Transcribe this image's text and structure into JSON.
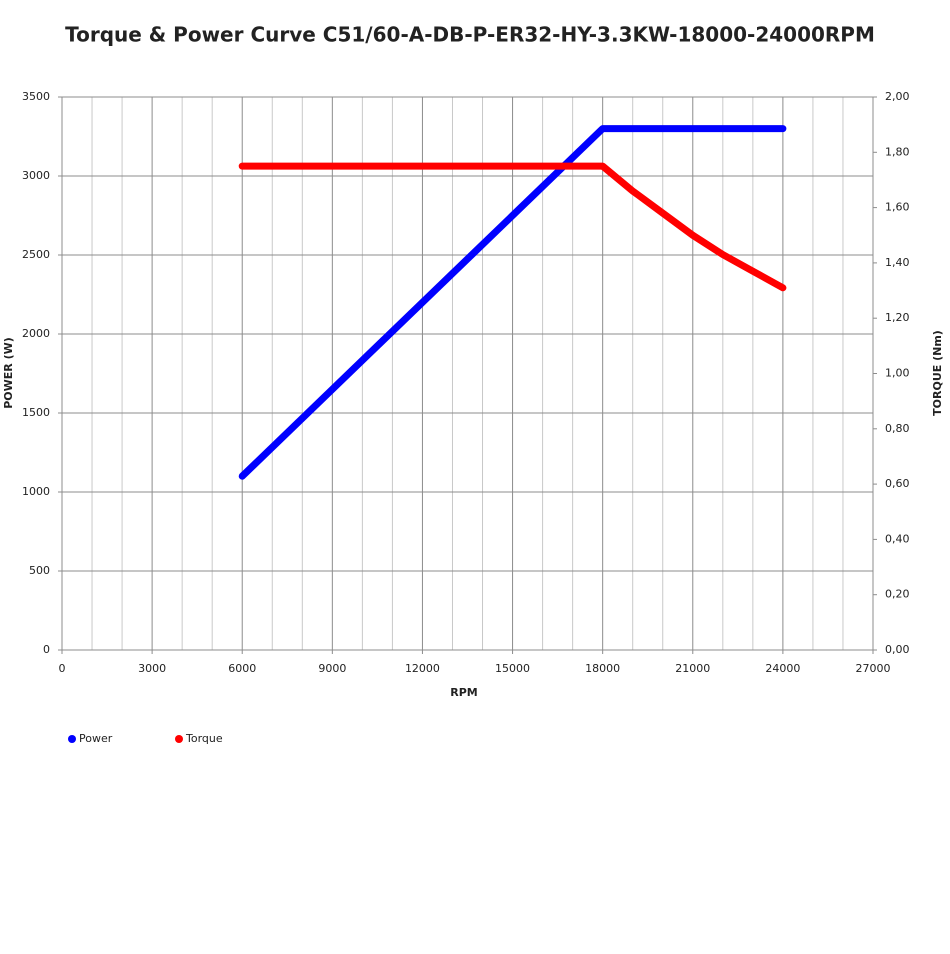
{
  "chart_data": {
    "type": "line",
    "title": "Torque & Power Curve C51/60-A-DB-P-ER32-HY-3.3KW-18000-24000RPM",
    "x_label": "RPM",
    "y_label": "POWER (W)",
    "y2_label": "TORQUE (Nm)",
    "xlim": [
      0,
      27000
    ],
    "xticks": [
      0,
      3000,
      6000,
      9000,
      12000,
      15000,
      18000,
      21000,
      24000,
      27000
    ],
    "x_minor_ticks": [
      1000,
      2000,
      4000,
      5000,
      7000,
      8000,
      10000,
      11000,
      13000,
      14000,
      16000,
      17000,
      19000,
      20000,
      22000,
      23000,
      25000,
      26000
    ],
    "ylim": [
      0,
      3500
    ],
    "yticks": [
      0,
      500,
      1000,
      1500,
      2000,
      2500,
      3000,
      3500
    ],
    "y2lim": [
      0,
      2
    ],
    "y2ticks": [
      {
        "value": 0,
        "label": "0,00"
      },
      {
        "value": 0.2,
        "label": "0,20"
      },
      {
        "value": 0.4,
        "label": "0,40"
      },
      {
        "value": 0.6,
        "label": "0,60"
      },
      {
        "value": 0.8,
        "label": "0,80"
      },
      {
        "value": 1,
        "label": "1,00"
      },
      {
        "value": 1.2,
        "label": "1,20"
      },
      {
        "value": 1.4,
        "label": "1,40"
      },
      {
        "value": 1.6,
        "label": "1,60"
      },
      {
        "value": 1.8,
        "label": "1,80"
      },
      {
        "value": 2,
        "label": "2,00"
      }
    ],
    "grid": true,
    "legend": "bottom-left",
    "series": [
      {
        "name": "Power",
        "color": "#0000ff",
        "x": [
          6000,
          18000,
          24000
        ],
        "values": [
          1100,
          3300,
          3300
        ]
      },
      {
        "name": "Torque",
        "color": "#ff0000",
        "axis": "y2",
        "x": [
          6000,
          18000,
          19000,
          20000,
          21000,
          22000,
          23000,
          24000
        ],
        "values": [
          1.75,
          1.75,
          1.66,
          1.58,
          1.5,
          1.43,
          1.37,
          1.31
        ]
      }
    ]
  }
}
